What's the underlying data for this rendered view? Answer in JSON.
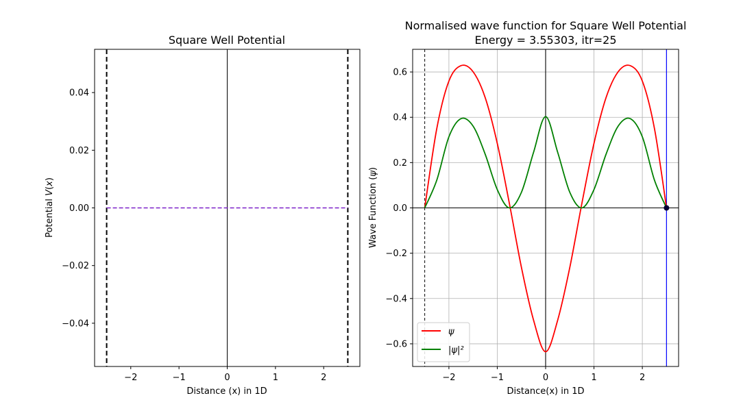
{
  "chart_data": [
    {
      "type": "line",
      "title": "Square Well Potential",
      "xlabel": "Distance (x) in 1D",
      "ylabel": "Potential V(x)",
      "xlim": [
        -2.75,
        2.75
      ],
      "ylim": [
        -0.055,
        0.055
      ],
      "xticks": [
        -2,
        -1,
        0,
        1,
        2
      ],
      "xtick_labels": [
        "−2",
        "−1",
        "0",
        "1",
        "2"
      ],
      "yticks": [
        -0.04,
        -0.02,
        0.0,
        0.02,
        0.04
      ],
      "ytick_labels": [
        "−0.04",
        "−0.02",
        "0.00",
        "0.02",
        "0.04"
      ],
      "grid": false,
      "well_walls": [
        -2.5,
        2.5
      ],
      "axis_line_x": 0,
      "series": [
        {
          "x": [
            -2.5,
            2.5
          ],
          "y": [
            0,
            0
          ],
          "color": "#7b1fc8",
          "style": "dashed"
        }
      ],
      "colors": {
        "walls": "#000000",
        "potential": "#7b1fc8",
        "axis": "#000000"
      }
    },
    {
      "type": "line",
      "title": "Normalised wave function for Square Well Potential",
      "subtitle": "Energy =  3.55303, itr=25",
      "xlabel": "Distance(x) in 1D",
      "ylabel": "Wave Function (ψ)",
      "xlim": [
        -2.75,
        2.75
      ],
      "ylim": [
        -0.7,
        0.7
      ],
      "xticks": [
        -2,
        -1,
        0,
        1,
        2
      ],
      "xtick_labels": [
        "−2",
        "−1",
        "0",
        "1",
        "2"
      ],
      "yticks": [
        -0.6,
        -0.4,
        -0.2,
        0.0,
        0.2,
        0.4,
        0.6
      ],
      "ytick_labels": [
        "−0.6",
        "−0.4",
        "−0.2",
        "0.0",
        "0.2",
        "0.4",
        "0.6"
      ],
      "grid": true,
      "left_wall": -2.5,
      "right_boundary": 2.5,
      "endpoint": [
        2.5,
        0
      ],
      "legend_position": "lower-left",
      "series": [
        {
          "name": "ψ",
          "color": "#ff0000",
          "x": [
            -2.5,
            -2.25,
            -2.0,
            -1.75,
            -1.5,
            -1.25,
            -1.0,
            -0.75,
            -0.5,
            -0.25,
            0.0,
            0.25,
            0.5,
            0.75,
            1.0,
            1.25,
            1.5,
            1.75,
            2.0,
            2.25,
            2.5
          ],
          "y": [
            0.0,
            0.351,
            0.56,
            0.628,
            0.601,
            0.487,
            0.285,
            0.02,
            -0.263,
            -0.495,
            -0.635,
            -0.495,
            -0.263,
            0.02,
            0.285,
            0.487,
            0.601,
            0.628,
            0.56,
            0.351,
            0.0
          ]
        },
        {
          "name": "|ψ|²",
          "color": "#008000",
          "x": [
            -2.5,
            -2.25,
            -2.0,
            -1.75,
            -1.5,
            -1.25,
            -1.0,
            -0.75,
            -0.5,
            -0.25,
            0.0,
            0.25,
            0.5,
            0.75,
            1.0,
            1.25,
            1.5,
            1.75,
            2.0,
            2.25,
            2.5
          ],
          "y": [
            0.0,
            0.123,
            0.314,
            0.394,
            0.361,
            0.237,
            0.081,
            0.0,
            0.069,
            0.245,
            0.403,
            0.245,
            0.069,
            0.0,
            0.081,
            0.237,
            0.361,
            0.394,
            0.314,
            0.123,
            0.0
          ]
        }
      ],
      "colors": {
        "grid": "#b0b0b0",
        "left_wall": "#000000",
        "right_boundary": "#0000ff",
        "endpoint": "#000033"
      }
    }
  ]
}
